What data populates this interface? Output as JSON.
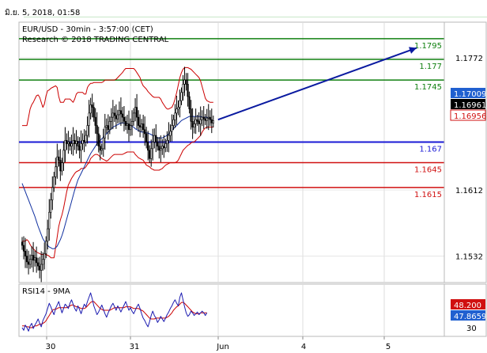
{
  "header": {
    "timestamp": "มิ.ย. 5, 2018, 01:58"
  },
  "colors": {
    "candle": "#000000",
    "bollinger": "#cc0000",
    "ma": "#1030a0",
    "resistance": "#108010",
    "pivot": "#1a1ad6",
    "support": "#d01010",
    "arrow": "#0a1aa0",
    "rsi": "#1a1ab0",
    "rsi_ma": "#cc0000",
    "price_badge_blue": "#2060d0",
    "price_badge_black": "#000000",
    "price_badge_red": "#d01010"
  },
  "chart_data": [
    {
      "type": "candlestick",
      "title": "EUR/USD - 30min - 3:57:00 (CET)",
      "subtitle": "Research © 2018 TRADING CENTRAL",
      "x_tick_labels": [
        "30",
        "31",
        "Jun",
        "4",
        "5"
      ],
      "y_tick_labels": [
        "1.1772",
        "1.1612",
        "1.1532"
      ],
      "ylim": [
        1.15,
        1.1815
      ],
      "grid": true,
      "levels": [
        {
          "label": "1.1795",
          "value": 1.1795,
          "role": "resistance"
        },
        {
          "label": "1.177",
          "value": 1.177,
          "role": "resistance"
        },
        {
          "label": "1.1745",
          "value": 1.1745,
          "role": "resistance"
        },
        {
          "label": "1.167",
          "value": 1.167,
          "role": "pivot"
        },
        {
          "label": "1.1645",
          "value": 1.1645,
          "role": "support"
        },
        {
          "label": "1.1615",
          "value": 1.1615,
          "role": "support"
        }
      ],
      "price_badges": [
        {
          "label": "1.17009",
          "value": 1.17009,
          "style": "blue"
        },
        {
          "label": "1.16961",
          "value": 1.16961,
          "style": "black"
        },
        {
          "label": "1.16956",
          "value": 1.16956,
          "style": "red"
        }
      ],
      "forecast_arrow": {
        "from": 1.1697,
        "to": 1.178
      },
      "close": [
        1.1545,
        1.1538,
        1.1532,
        1.1525,
        1.1522,
        1.1528,
        1.1533,
        1.1527,
        1.153,
        1.1524,
        1.152,
        1.1515,
        1.1522,
        1.1528,
        1.1535,
        1.155,
        1.1565,
        1.1585,
        1.16,
        1.1615,
        1.1628,
        1.164,
        1.1652,
        1.1648,
        1.1635,
        1.1645,
        1.166,
        1.1672,
        1.1668,
        1.167,
        1.1665,
        1.1668,
        1.1672,
        1.1668,
        1.1671,
        1.1665,
        1.166,
        1.1668,
        1.1672,
        1.167,
        1.1678,
        1.169,
        1.1705,
        1.1715,
        1.1712,
        1.17,
        1.169,
        1.168,
        1.1665,
        1.166,
        1.1662,
        1.1675,
        1.1688,
        1.169,
        1.1685,
        1.1695,
        1.17,
        1.1705,
        1.1702,
        1.1698,
        1.1703,
        1.1708,
        1.1704,
        1.17,
        1.1695,
        1.169,
        1.1692,
        1.1685,
        1.169,
        1.1695,
        1.1705,
        1.1712,
        1.17,
        1.169,
        1.1688,
        1.1692,
        1.1685,
        1.168,
        1.167,
        1.166,
        1.165,
        1.1662,
        1.167,
        1.1678,
        1.167,
        1.1665,
        1.166,
        1.1662,
        1.1665,
        1.1663,
        1.1668,
        1.1672,
        1.1678,
        1.1683,
        1.169,
        1.1697,
        1.1705,
        1.171,
        1.1712,
        1.172,
        1.173,
        1.174,
        1.1745,
        1.174,
        1.1725,
        1.171,
        1.1695,
        1.1688,
        1.1692,
        1.1697,
        1.1695,
        1.1692,
        1.1697,
        1.17,
        1.1698,
        1.1696,
        1.1699,
        1.17,
        1.1697,
        1.1693,
        1.1696
      ],
      "series": [
        {
          "name": "Bollinger Bands (upper)",
          "values": [
            1.169,
            1.169,
            1.169,
            1.169,
            1.17,
            1.171,
            1.1715,
            1.1718,
            1.1722,
            1.1726,
            1.1727,
            1.1724,
            1.1718,
            1.1712,
            1.1716,
            1.1726,
            1.1732,
            1.1733,
            1.1735,
            1.1736,
            1.1737,
            1.1738,
            1.1736,
            1.1725,
            1.1718,
            1.1718,
            1.1718,
            1.1722,
            1.1722,
            1.1722,
            1.1722,
            1.172,
            1.1718,
            1.1722,
            1.1728,
            1.173,
            1.173,
            1.173,
            1.173,
            1.1728,
            1.1728,
            1.1736,
            1.1739,
            1.1741,
            1.1741,
            1.1742,
            1.1742,
            1.1742,
            1.1742,
            1.1742,
            1.1742,
            1.1743,
            1.1745,
            1.1745,
            1.1745,
            1.1745,
            1.1745,
            1.1745,
            1.1745,
            1.1746,
            1.1748,
            1.175,
            1.1752,
            1.1754,
            1.1757,
            1.1759,
            1.1759,
            1.1759,
            1.1759,
            1.1759,
            1.1759,
            1.1757,
            1.1754,
            1.1751,
            1.1748,
            1.1742,
            1.1738,
            1.1736,
            1.1734,
            1.1731,
            1.1729,
            1.1727,
            1.1725,
            1.1724,
            1.1724,
            1.1724,
            1.1724,
            1.1722,
            1.1718,
            1.1715,
            1.1712,
            1.171,
            1.171,
            1.1711,
            1.1712,
            1.1716,
            1.1722,
            1.173,
            1.1739,
            1.1748,
            1.1754,
            1.1758,
            1.176,
            1.176,
            1.176,
            1.1759,
            1.1758,
            1.1756,
            1.1754,
            1.1752,
            1.175,
            1.1748,
            1.1744,
            1.1737,
            1.173,
            1.1723,
            1.172,
            1.1719,
            1.1718,
            1.1718,
            1.1718
          ]
        },
        {
          "name": "Bollinger Bands (lower)",
          "values": [
            1.155,
            1.155,
            1.155,
            1.1552,
            1.155,
            1.1546,
            1.1543,
            1.1541,
            1.1539,
            1.1537,
            1.1536,
            1.1535,
            1.1534,
            1.1534,
            1.1534,
            1.1534,
            1.1533,
            1.1532,
            1.153,
            1.153,
            1.153,
            1.1542,
            1.1555,
            1.1568,
            1.1576,
            1.1582,
            1.159,
            1.16,
            1.161,
            1.1618,
            1.1622,
            1.1626,
            1.1629,
            1.1632,
            1.1634,
            1.1635,
            1.1636,
            1.1638,
            1.1638,
            1.1638,
            1.164,
            1.1643,
            1.1645,
            1.165,
            1.1652,
            1.1654,
            1.1655,
            1.1655,
            1.1654,
            1.1652,
            1.165,
            1.1649,
            1.1648,
            1.1647,
            1.1648,
            1.165,
            1.1652,
            1.1654,
            1.1655,
            1.1655,
            1.1655,
            1.1655,
            1.1655,
            1.1655,
            1.1656,
            1.1657,
            1.1658,
            1.1658,
            1.1658,
            1.1658,
            1.1658,
            1.1655,
            1.1653,
            1.1651,
            1.165,
            1.1649,
            1.1648,
            1.1645,
            1.1642,
            1.1641,
            1.164,
            1.1638,
            1.1637,
            1.1636,
            1.1636,
            1.1636,
            1.1636,
            1.1637,
            1.1638,
            1.164,
            1.1642,
            1.1643,
            1.1644,
            1.1645,
            1.1645,
            1.1645,
            1.1645,
            1.1646,
            1.1648,
            1.1652,
            1.1656,
            1.166,
            1.1662,
            1.1664,
            1.1666,
            1.1667,
            1.1669,
            1.167,
            1.167,
            1.1672,
            1.1674,
            1.1676,
            1.1678,
            1.1682,
            1.1685,
            1.1687,
            1.1688,
            1.1688,
            1.1688,
            1.1688,
            1.1688
          ]
        },
        {
          "name": "Moving Average",
          "values": [
            1.162,
            1.1615,
            1.161,
            1.1605,
            1.16,
            1.1595,
            1.159,
            1.1585,
            1.158,
            1.1574,
            1.1568,
            1.1563,
            1.1558,
            1.1553,
            1.155,
            1.1547,
            1.1545,
            1.1543,
            1.1542,
            1.1541,
            1.1541,
            1.1542,
            1.1544,
            1.1548,
            1.1552,
            1.1557,
            1.1563,
            1.157,
            1.1577,
            1.1584,
            1.1591,
            1.1598,
            1.1605,
            1.1612,
            1.1618,
            1.1624,
            1.1628,
            1.1632,
            1.1636,
            1.164,
            1.1644,
            1.1648,
            1.1652,
            1.1656,
            1.1659,
            1.1662,
            1.1665,
            1.1668,
            1.167,
            1.1672,
            1.1674,
            1.1676,
            1.1678,
            1.168,
            1.1682,
            1.1684,
            1.1686,
            1.1688,
            1.1689,
            1.169,
            1.1691,
            1.1692,
            1.1693,
            1.1693,
            1.1693,
            1.1693,
            1.1692,
            1.1691,
            1.169,
            1.1689,
            1.1688,
            1.1686,
            1.1685,
            1.1684,
            1.1683,
            1.1682,
            1.1682,
            1.1682,
            1.1681,
            1.1681,
            1.168,
            1.1679,
            1.1678,
            1.1677,
            1.1676,
            1.1675,
            1.1675,
            1.1675,
            1.1675,
            1.1676,
            1.1677,
            1.1678,
            1.168,
            1.1682,
            1.1684,
            1.1686,
            1.1688,
            1.169,
            1.1692,
            1.1694,
            1.1696,
            1.1697,
            1.1698,
            1.1699,
            1.17,
            1.1701,
            1.1701,
            1.1701,
            1.1701,
            1.1701,
            1.1701,
            1.1701,
            1.1701,
            1.17,
            1.17,
            1.17,
            1.17,
            1.1699,
            1.1699
          ]
        }
      ]
    },
    {
      "type": "line",
      "title": "RSI14 - 9MA",
      "y_tick_labels": [
        "30"
      ],
      "ylim": [
        20,
        80
      ],
      "value_badges": [
        {
          "label": "48.200",
          "value": 48.2,
          "style": "red"
        },
        {
          "label": "47.8659",
          "value": 47.8659,
          "style": "blue"
        }
      ],
      "series": [
        {
          "name": "RSI14",
          "values": [
            30,
            27,
            33,
            30,
            26,
            32,
            35,
            29,
            33,
            36,
            40,
            35,
            31,
            38,
            42,
            46,
            52,
            58,
            54,
            49,
            45,
            52,
            56,
            60,
            53,
            47,
            52,
            57,
            55,
            52,
            58,
            62,
            57,
            52,
            49,
            55,
            51,
            46,
            52,
            57,
            54,
            60,
            65,
            70,
            63,
            55,
            50,
            45,
            48,
            52,
            56,
            51,
            46,
            42,
            47,
            51,
            55,
            58,
            54,
            50,
            55,
            52,
            48,
            52,
            56,
            60,
            55,
            50,
            53,
            49,
            46,
            50,
            54,
            57,
            52,
            46,
            41,
            38,
            34,
            31,
            37,
            44,
            49,
            44,
            41,
            36,
            39,
            43,
            40,
            37,
            41,
            45,
            48,
            52,
            55,
            59,
            62,
            58,
            55,
            65,
            70,
            62,
            54,
            47,
            43,
            45,
            49,
            47,
            44,
            46,
            48,
            45,
            47,
            49,
            47,
            44,
            47
          ]
        },
        {
          "name": "9MA",
          "values": [
            32,
            32,
            32,
            31,
            31,
            30,
            30,
            31,
            32,
            32,
            33,
            34,
            34,
            35,
            36,
            38,
            41,
            44,
            47,
            50,
            51,
            51,
            52,
            53,
            53,
            53,
            53,
            53,
            53,
            54,
            55,
            56,
            56,
            55,
            54,
            54,
            53,
            52,
            52,
            52,
            53,
            55,
            57,
            59,
            60,
            60,
            58,
            56,
            54,
            52,
            51,
            50,
            50,
            50,
            50,
            50,
            51,
            52,
            53,
            53,
            53,
            53,
            53,
            53,
            53,
            54,
            54,
            54,
            54,
            53,
            52,
            52,
            52,
            52,
            51,
            50,
            49,
            47,
            45,
            43,
            41,
            40,
            40,
            40,
            41,
            41,
            41,
            41,
            41,
            41,
            41,
            42,
            43,
            45,
            47,
            50,
            52,
            54,
            55,
            57,
            59,
            59,
            58,
            56,
            54,
            52,
            50,
            48,
            47,
            46,
            46,
            46,
            47,
            47,
            47,
            47,
            47
          ]
        }
      ]
    }
  ]
}
